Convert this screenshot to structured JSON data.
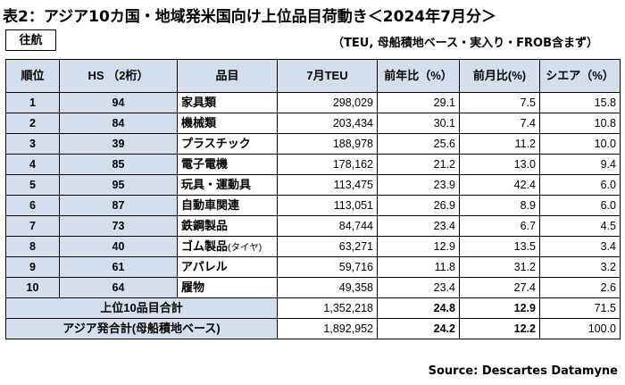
{
  "title": "表2：アジア10カ国・地域発米国向け上位品目荷動き＜2024年7月分＞",
  "direction": "往航",
  "note": "（TEU, 母船積地ベース・実入り・FROB含まず）",
  "headers": [
    "順位",
    "HS （2桁）",
    "品目",
    "7月TEU",
    "前年比（%）",
    "前月比(%)",
    "シエア（%）"
  ],
  "rows": [
    {
      "rank": "1",
      "hs": "94",
      "item": "家具類",
      "teu": "298,029",
      "yoy": "29.1",
      "mom": "7.5",
      "share": "15.8"
    },
    {
      "rank": "2",
      "hs": "84",
      "item": "機械類",
      "teu": "203,434",
      "yoy": "30.1",
      "mom": "7.4",
      "share": "10.8"
    },
    {
      "rank": "3",
      "hs": "39",
      "item": "プラスチック",
      "teu": "188,978",
      "yoy": "25.6",
      "mom": "11.2",
      "share": "10.0"
    },
    {
      "rank": "4",
      "hs": "85",
      "item": "電子電機",
      "teu": "178,162",
      "yoy": "21.2",
      "mom": "13.0",
      "share": "9.4"
    },
    {
      "rank": "5",
      "hs": "95",
      "item": "玩具・運動具",
      "teu": "113,475",
      "yoy": "23.9",
      "mom": "42.4",
      "share": "6.0"
    },
    {
      "rank": "6",
      "hs": "87",
      "item": "自動車関連",
      "teu": "113,051",
      "yoy": "26.9",
      "mom": "8.9",
      "share": "6.0"
    },
    {
      "rank": "7",
      "hs": "73",
      "item": "鉄鋼製品",
      "teu": "84,744",
      "yoy": "23.4",
      "mom": "6.7",
      "share": "4.5"
    },
    {
      "rank": "8",
      "hs": "40",
      "item": "ゴム製品",
      "item_small": "(タイヤ)",
      "teu": "63,271",
      "yoy": "12.9",
      "mom": "13.5",
      "share": "3.4"
    },
    {
      "rank": "9",
      "hs": "61",
      "item": "アパレル",
      "teu": "59,716",
      "yoy": "11.8",
      "mom": "31.2",
      "share": "3.2"
    },
    {
      "rank": "10",
      "hs": "64",
      "item": "履物",
      "teu": "49,358",
      "yoy": "23.4",
      "mom": "27.4",
      "share": "2.6"
    }
  ],
  "totals": [
    {
      "label": "上位10品目合計",
      "teu": "1,352,218",
      "yoy": "24.8",
      "mom": "12.9",
      "share": "71.5"
    },
    {
      "label": "アジア発合計(母船積地ベース)",
      "teu": "1,892,952",
      "yoy": "24.2",
      "mom": "12.2",
      "share": "100.0"
    }
  ],
  "source": "Source: Descartes Datamyne"
}
